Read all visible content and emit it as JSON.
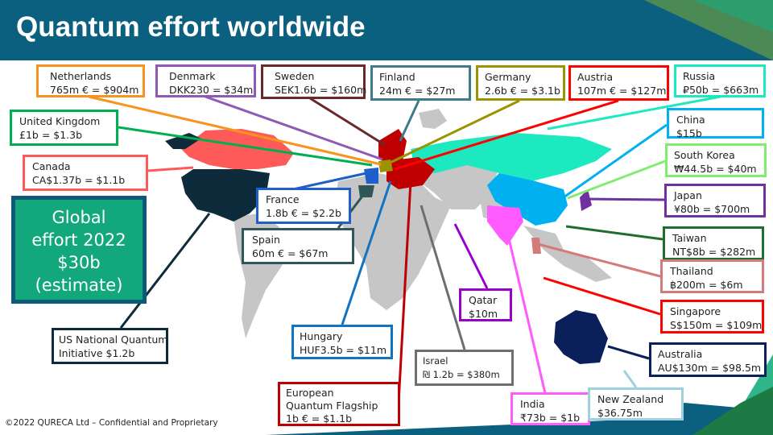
{
  "title": "Quantum effort worldwide",
  "global": {
    "line1": "Global",
    "line2": "effort 2022",
    "line3": "$30b",
    "line4": "(estimate)"
  },
  "footer": "©2022 QURECA Ltd – Confidential and Proprietary",
  "countries": [
    {
      "name": "Netherlands",
      "value": "765m € = $904m",
      "color": "#f7941d"
    },
    {
      "name": "Denmark",
      "value": "DKK230 = $34m",
      "color": "#8e5ab5"
    },
    {
      "name": "Sweden",
      "value": "SEK1.6b = $160m",
      "color": "#6b2a2a"
    },
    {
      "name": "Finland",
      "value": "24m € = $27m",
      "color": "#3f7a8a"
    },
    {
      "name": "Germany",
      "value": "2.6b € = $3.1b",
      "color": "#9b9300"
    },
    {
      "name": "Austria",
      "value": "107m  € = $127m",
      "color": "#ff0000"
    },
    {
      "name": "Russia",
      "value": "₽50b = $663m",
      "color": "#1de9c0"
    },
    {
      "name": "United Kingdom",
      "value": "£1b = $1.3b",
      "color": "#00b050"
    },
    {
      "name": "China",
      "value": "$15b",
      "color": "#00b0f0"
    },
    {
      "name": "Canada",
      "value": "CA$1.37b = $1.1b",
      "color": "#ff5a5a"
    },
    {
      "name": "South Korea",
      "value": "₩44.5b = $40m",
      "color": "#7fee6e"
    },
    {
      "name": "France",
      "value": "1.8b € = $2.2b",
      "color": "#1f5fcc"
    },
    {
      "name": "Japan",
      "value": "¥80b = $700m",
      "color": "#7030a0"
    },
    {
      "name": "Spain",
      "value": "60m € = $67m",
      "color": "#2f5659"
    },
    {
      "name": "Taiwan",
      "value": "NT$8b = $282m",
      "color": "#1f6e2e"
    },
    {
      "name": "Thailand",
      "value": "฿200m = $6m",
      "color": "#d47a7a"
    },
    {
      "name": "Qatar",
      "value": "$10m",
      "color": "#9900cc"
    },
    {
      "name": "Singapore",
      "value": "S$150m = $109m",
      "color": "#ff0000"
    },
    {
      "name": "US National Quantum",
      "value": "Initiative $1.2b",
      "color": "#0d2b3a"
    },
    {
      "name": "Hungary",
      "value": "HUF3.5b = $11m",
      "color": "#1074c4"
    },
    {
      "name": "Australia",
      "value": "AU$130m = $98.5m",
      "color": "#0b1f5a"
    },
    {
      "name": "Israel",
      "value": "₪ 1.2b = $380m",
      "color": "#6e6e6e"
    },
    {
      "name": "European",
      "value": "Quantum Flagship",
      "extra": "1b € = $1.1b",
      "color": "#c00000"
    },
    {
      "name": "India",
      "value": "₹73b = $1b",
      "color": "#ff5bff"
    },
    {
      "name": "New Zealand",
      "value": "$36.75m",
      "color": "#9fd0dd"
    }
  ]
}
